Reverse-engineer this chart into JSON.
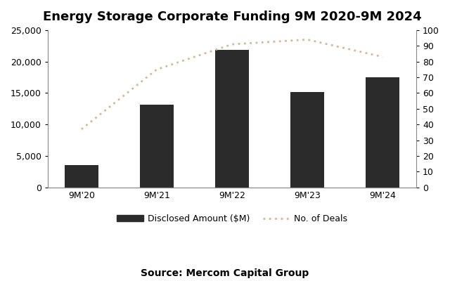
{
  "title": "Energy Storage Corporate Funding 9M 2020-9M 2024",
  "categories": [
    "9M'20",
    "9M'21",
    "9M'22",
    "9M'23",
    "9M'24"
  ],
  "bar_values": [
    3500,
    13100,
    21900,
    15200,
    17500
  ],
  "line_values": [
    37,
    75,
    91,
    94,
    83
  ],
  "bar_color": "#2b2b2b",
  "line_color": "#d4b896",
  "ylim_left": [
    0,
    25000
  ],
  "ylim_right": [
    0,
    100
  ],
  "yticks_left": [
    0,
    5000,
    10000,
    15000,
    20000,
    25000
  ],
  "yticks_right": [
    0,
    10,
    20,
    30,
    40,
    50,
    60,
    70,
    80,
    90,
    100
  ],
  "legend_bar_label": "Disclosed Amount ($M)",
  "legend_line_label": "No. of Deals",
  "source_text": "Source: Mercom Capital Group",
  "background_color": "#ffffff",
  "title_fontsize": 13,
  "source_fontsize": 10,
  "tick_fontsize": 9,
  "bar_width": 0.45
}
